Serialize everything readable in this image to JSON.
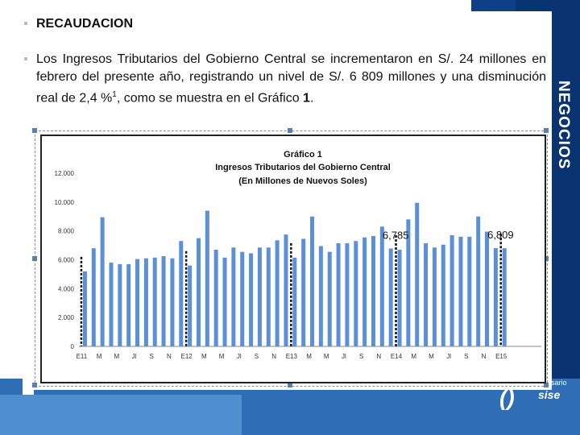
{
  "heading": "RECAUDACION",
  "paragraph": {
    "text": "Los Ingresos Tributarios del Gobierno Central se incrementaron en S/. 24 millones en febrero del presente año, registrando un nivel de S/. 6 809 millones y una disminución real de 2,4 %",
    "footnote_mark": "1",
    "tail": ", como se muestra en el Gráfico ",
    "ref": "1",
    "end": "."
  },
  "side_word": "NEGOCIOS",
  "logo": {
    "small_text": "sario",
    "mark": "()",
    "word": "sise"
  },
  "colors": {
    "bar": "#5b8fd6",
    "navy": "#0f3f86",
    "blue": "#2f6db5"
  },
  "chart_data": {
    "type": "bar",
    "title": "Gráfico 1",
    "subtitle": "Ingresos Tributarios del Gobierno Central",
    "units_label": "(En Millones de Nuevos Soles)",
    "ylim": [
      0,
      12000
    ],
    "yticks": [
      "12.000",
      "10.000",
      "8.000",
      "6.000",
      "4.000",
      "2.000",
      "0"
    ],
    "ytick_values": [
      12000,
      10000,
      8000,
      6000,
      4000,
      2000,
      0
    ],
    "xtick_labels": [
      "E11",
      "M",
      "M",
      "Jl",
      "S",
      "N",
      "E12",
      "M",
      "M",
      "Jl",
      "S",
      "N",
      "E13",
      "M",
      "M",
      "Jl",
      "S",
      "N",
      "E14",
      "M",
      "M",
      "Jl",
      "S",
      "N",
      "E15"
    ],
    "xtick_indices": [
      0,
      2,
      4,
      6,
      8,
      10,
      12,
      14,
      16,
      18,
      20,
      22,
      24,
      26,
      28,
      30,
      32,
      34,
      36,
      38,
      40,
      42,
      44,
      46,
      48
    ],
    "values": [
      5200,
      6800,
      8950,
      5800,
      5700,
      5700,
      6050,
      6100,
      6150,
      6250,
      6100,
      7300,
      5600,
      7500,
      9400,
      6700,
      6150,
      6850,
      6550,
      6450,
      6850,
      6850,
      7350,
      7750,
      6150,
      7450,
      9000,
      6950,
      6550,
      7150,
      7150,
      7300,
      7550,
      7650,
      8300,
      6785,
      6700,
      8800,
      9950,
      7150,
      6850,
      7050,
      7700,
      7600,
      7600,
      9000,
      7950,
      6809,
      6800
    ],
    "annotations": [
      {
        "label": "6,785",
        "index": 35,
        "value": 6785
      },
      {
        "label": "6,809",
        "index": 47,
        "value": 6809
      }
    ],
    "dashed_marker_indices": [
      0,
      12,
      24,
      36,
      48
    ],
    "grid": false
  }
}
